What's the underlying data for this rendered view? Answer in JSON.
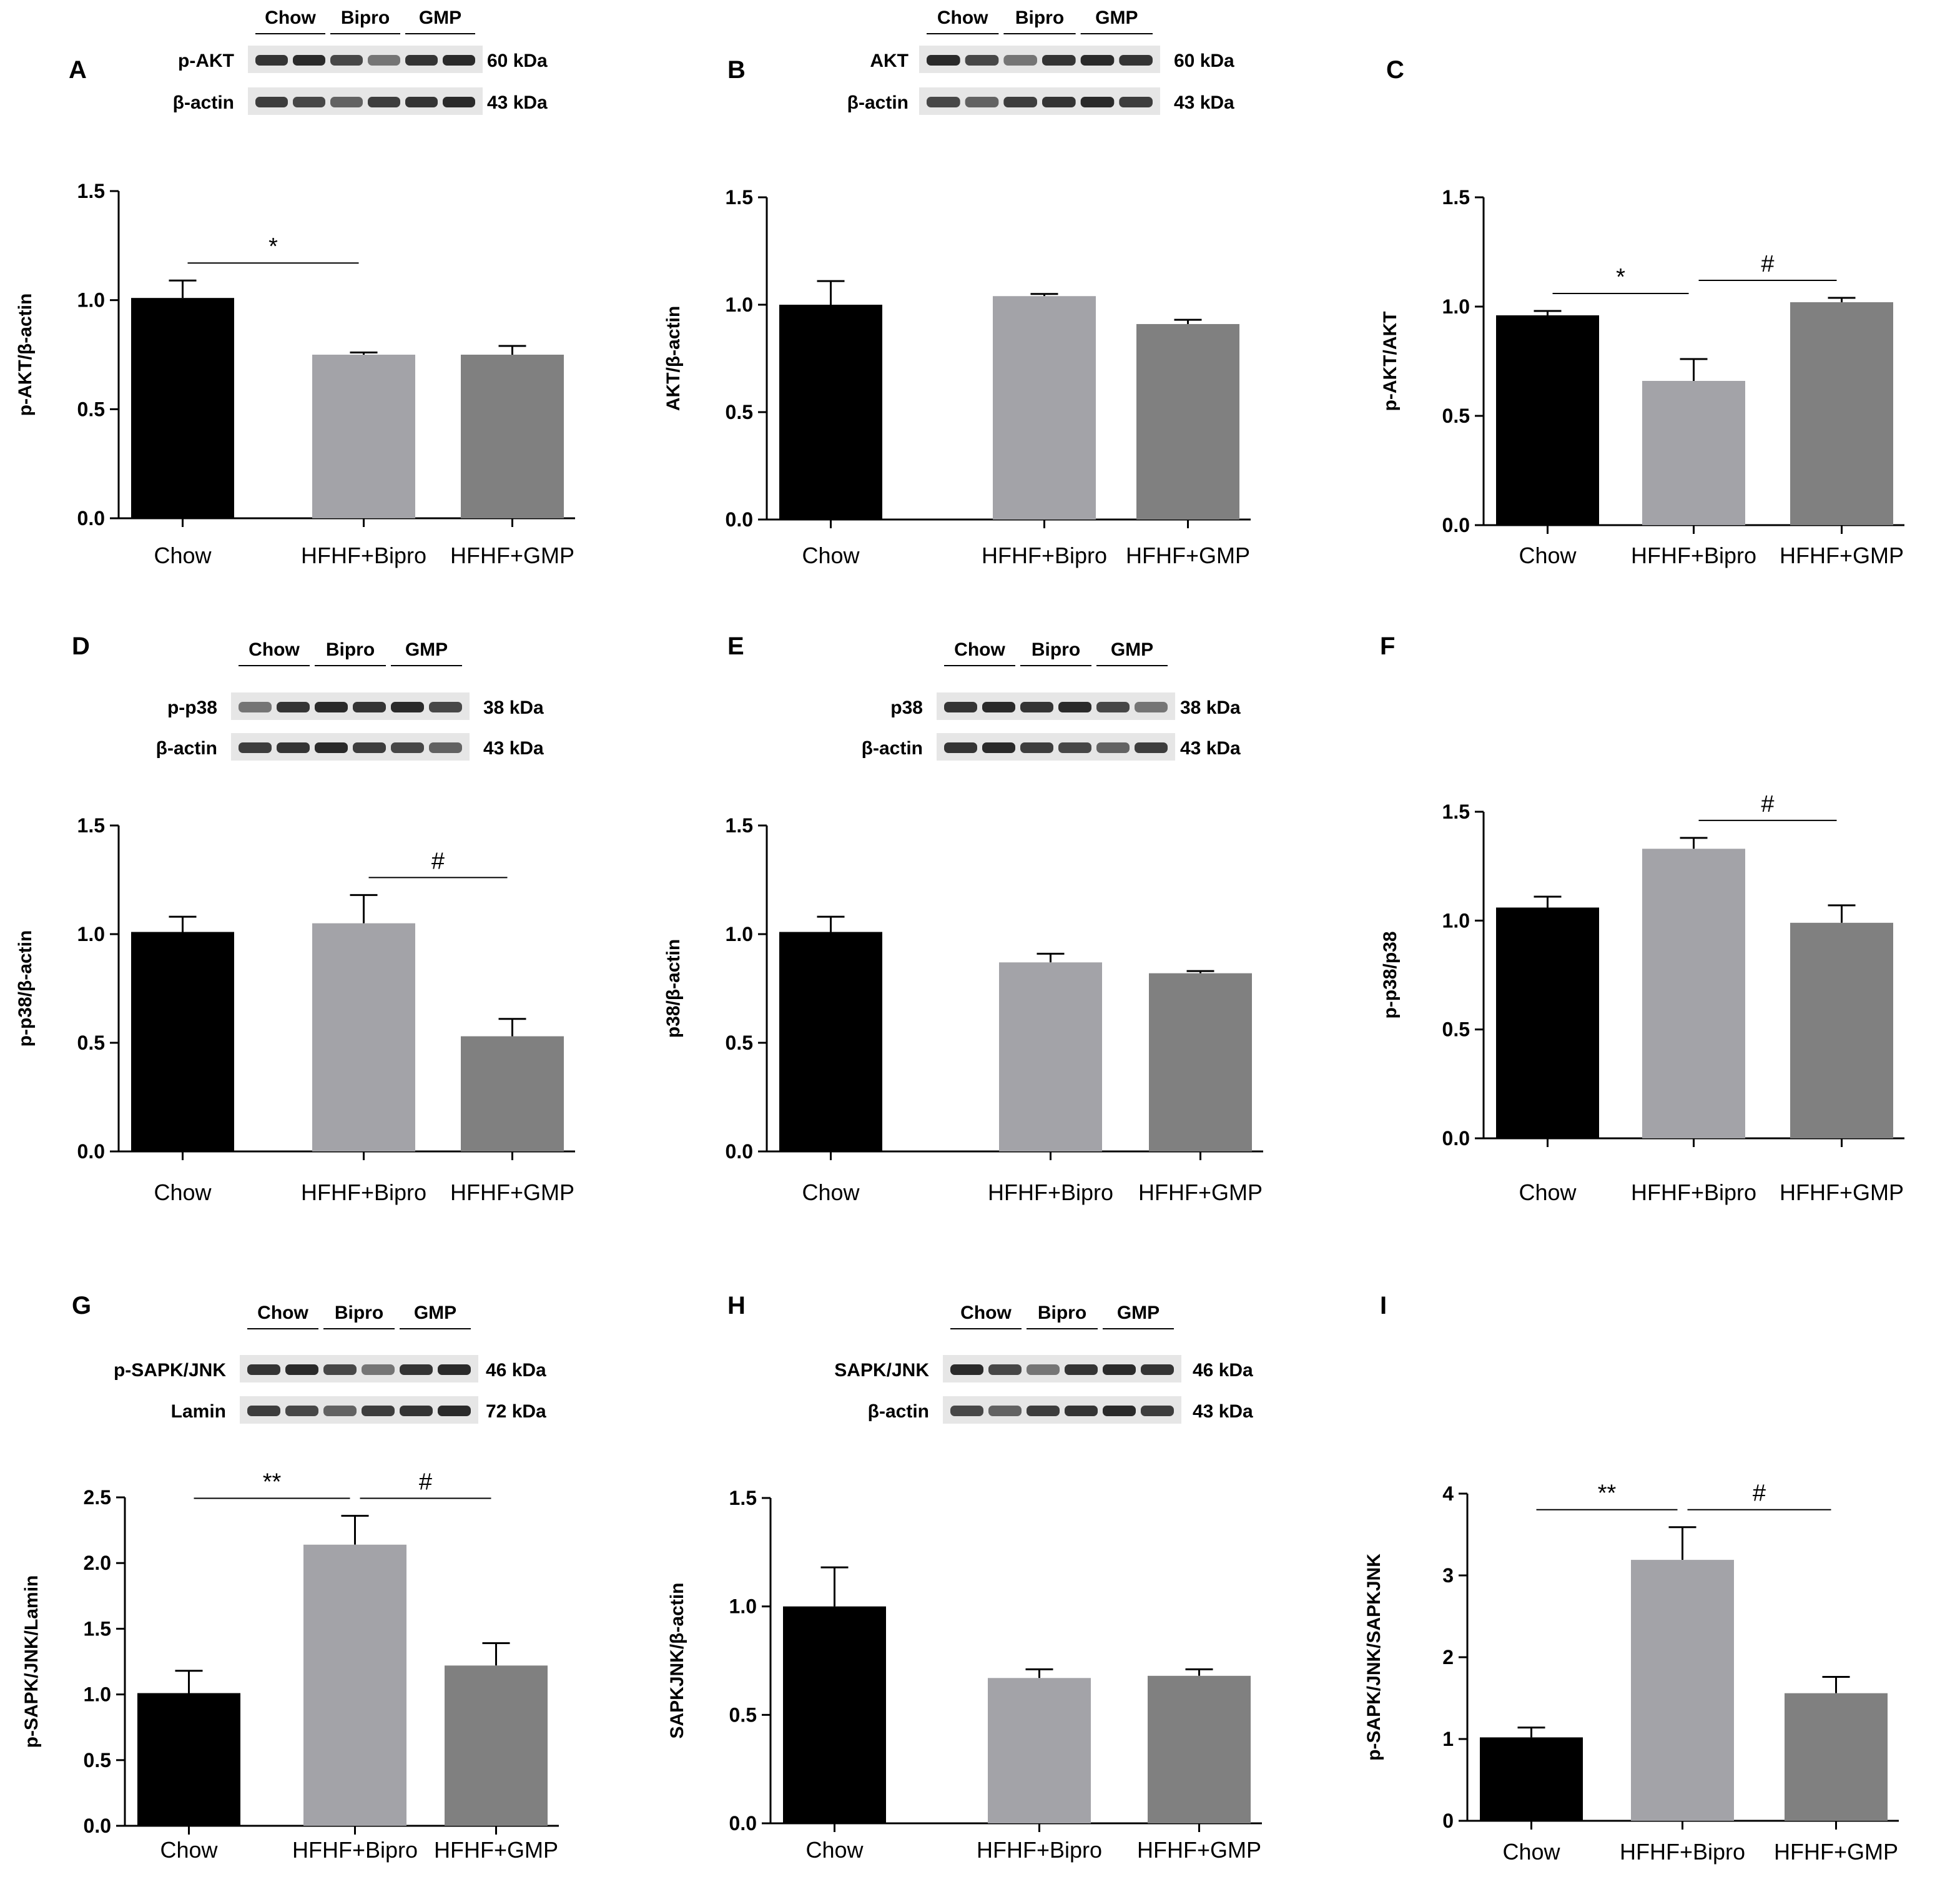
{
  "colors": {
    "Chow": "#000000",
    "HFHF+Bipro": "#a3a3a8",
    "HFHF+GMP": "#808080",
    "blot_band": "#2a2a2a"
  },
  "chart_data": [
    {
      "panel": "A",
      "type": "bar",
      "categories": [
        "Chow",
        "HFHF+Bipro",
        "HFHF+GMP"
      ],
      "values": [
        1.01,
        0.75,
        0.75
      ],
      "errors": [
        0.08,
        0.01,
        0.04
      ],
      "ylabel": "p-AKT/β-actin",
      "ylim": [
        0,
        1.5
      ],
      "yticks": [
        "0.0",
        "0.5",
        "1.0",
        "1.5"
      ],
      "significance": [
        {
          "from": 0,
          "to": 1,
          "label": "*"
        }
      ],
      "blot": {
        "groups": [
          "Chow",
          "Bipro",
          "GMP"
        ],
        "rows": [
          {
            "protein": "p-AKT",
            "size": "60 kDa"
          },
          {
            "protein": "β-actin",
            "size": "43 kDa"
          }
        ]
      }
    },
    {
      "panel": "B",
      "type": "bar",
      "categories": [
        "Chow",
        "HFHF+Bipro",
        "HFHF+GMP"
      ],
      "values": [
        1.0,
        1.04,
        0.91
      ],
      "errors": [
        0.11,
        0.01,
        0.02
      ],
      "ylabel": "AKT/β-actin",
      "ylim": [
        0,
        1.5
      ],
      "yticks": [
        "0.0",
        "0.5",
        "1.0",
        "1.5"
      ],
      "significance": [],
      "blot": {
        "groups": [
          "Chow",
          "Bipro",
          "GMP"
        ],
        "rows": [
          {
            "protein": "AKT",
            "size": "60 kDa"
          },
          {
            "protein": "β-actin",
            "size": "43 kDa"
          }
        ]
      }
    },
    {
      "panel": "C",
      "type": "bar",
      "categories": [
        "Chow",
        "HFHF+Bipro",
        "HFHF+GMP"
      ],
      "values": [
        0.96,
        0.66,
        1.02
      ],
      "errors": [
        0.02,
        0.1,
        0.02
      ],
      "ylabel": "p-AKT/AKT",
      "ylim": [
        0,
        1.5
      ],
      "yticks": [
        "0.0",
        "0.5",
        "1.0",
        "1.5"
      ],
      "significance": [
        {
          "from": 0,
          "to": 1,
          "label": "*"
        },
        {
          "from": 1,
          "to": 2,
          "label": "#"
        }
      ],
      "blot": null
    },
    {
      "panel": "D",
      "type": "bar",
      "categories": [
        "Chow",
        "HFHF+Bipro",
        "HFHF+GMP"
      ],
      "values": [
        1.01,
        1.05,
        0.53
      ],
      "errors": [
        0.07,
        0.13,
        0.08
      ],
      "ylabel": "p-p38/β-actin",
      "ylim": [
        0,
        1.5
      ],
      "yticks": [
        "0.0",
        "0.5",
        "1.0",
        "1.5"
      ],
      "significance": [
        {
          "from": 1,
          "to": 2,
          "label": "#"
        }
      ],
      "blot": {
        "groups": [
          "Chow",
          "Bipro",
          "GMP"
        ],
        "rows": [
          {
            "protein": "p-p38",
            "size": "38 kDa"
          },
          {
            "protein": "β-actin",
            "size": "43 kDa"
          }
        ]
      }
    },
    {
      "panel": "E",
      "type": "bar",
      "categories": [
        "Chow",
        "HFHF+Bipro",
        "HFHF+GMP"
      ],
      "values": [
        1.01,
        0.87,
        0.82
      ],
      "errors": [
        0.07,
        0.04,
        0.01
      ],
      "ylabel": "p38/β-actin",
      "ylim": [
        0,
        1.5
      ],
      "yticks": [
        "0.0",
        "0.5",
        "1.0",
        "1.5"
      ],
      "significance": [],
      "blot": {
        "groups": [
          "Chow",
          "Bipro",
          "GMP"
        ],
        "rows": [
          {
            "protein": "p38",
            "size": "38 kDa"
          },
          {
            "protein": "β-actin",
            "size": "43 kDa"
          }
        ]
      }
    },
    {
      "panel": "F",
      "type": "bar",
      "categories": [
        "Chow",
        "HFHF+Bipro",
        "HFHF+GMP"
      ],
      "values": [
        1.06,
        1.33,
        0.99
      ],
      "errors": [
        0.05,
        0.05,
        0.08
      ],
      "ylabel": "p-p38/p38",
      "ylim": [
        0,
        1.5
      ],
      "yticks": [
        "0.0",
        "0.5",
        "1.0",
        "1.5"
      ],
      "significance": [
        {
          "from": 1,
          "to": 2,
          "label": "#"
        }
      ],
      "blot": null
    },
    {
      "panel": "G",
      "type": "bar",
      "categories": [
        "Chow",
        "HFHF+Bipro",
        "HFHF+GMP"
      ],
      "values": [
        1.01,
        2.14,
        1.22
      ],
      "errors": [
        0.17,
        0.22,
        0.17
      ],
      "ylabel": "p-SAPK/JNK/Lamin",
      "ylim": [
        0,
        2.5
      ],
      "yticks": [
        "0.0",
        "0.5",
        "1.0",
        "1.5",
        "2.0",
        "2.5"
      ],
      "significance": [
        {
          "from": 0,
          "to": 1,
          "label": "**"
        },
        {
          "from": 1,
          "to": 2,
          "label": "#"
        }
      ],
      "blot": {
        "groups": [
          "Chow",
          "Bipro",
          "GMP"
        ],
        "rows": [
          {
            "protein": "p-SAPK/JNK",
            "size": "46 kDa"
          },
          {
            "protein": "Lamin",
            "size": "72 kDa"
          }
        ]
      }
    },
    {
      "panel": "H",
      "type": "bar",
      "categories": [
        "Chow",
        "HFHF+Bipro",
        "HFHF+GMP"
      ],
      "values": [
        1.0,
        0.67,
        0.68
      ],
      "errors": [
        0.18,
        0.04,
        0.03
      ],
      "ylabel": "SAPKJNK/β-actin",
      "ylim": [
        0,
        1.5
      ],
      "yticks": [
        "0.0",
        "0.5",
        "1.0",
        "1.5"
      ],
      "significance": [],
      "blot": {
        "groups": [
          "Chow",
          "Bipro",
          "GMP"
        ],
        "rows": [
          {
            "protein": "SAPK/JNK",
            "size": "46 kDa"
          },
          {
            "protein": "β-actin",
            "size": "43 kDa"
          }
        ]
      }
    },
    {
      "panel": "I",
      "type": "bar",
      "categories": [
        "Chow",
        "HFHF+Bipro",
        "HFHF+GMP"
      ],
      "values": [
        1.02,
        3.19,
        1.56
      ],
      "errors": [
        0.12,
        0.4,
        0.2
      ],
      "ylabel": "p-SAPK/JNK/SAPKJNK",
      "ylim": [
        0,
        4
      ],
      "yticks": [
        "0",
        "1",
        "2",
        "3",
        "4"
      ],
      "significance": [
        {
          "from": 0,
          "to": 1,
          "label": "**"
        },
        {
          "from": 1,
          "to": 2,
          "label": "#"
        }
      ],
      "blot": null
    }
  ]
}
